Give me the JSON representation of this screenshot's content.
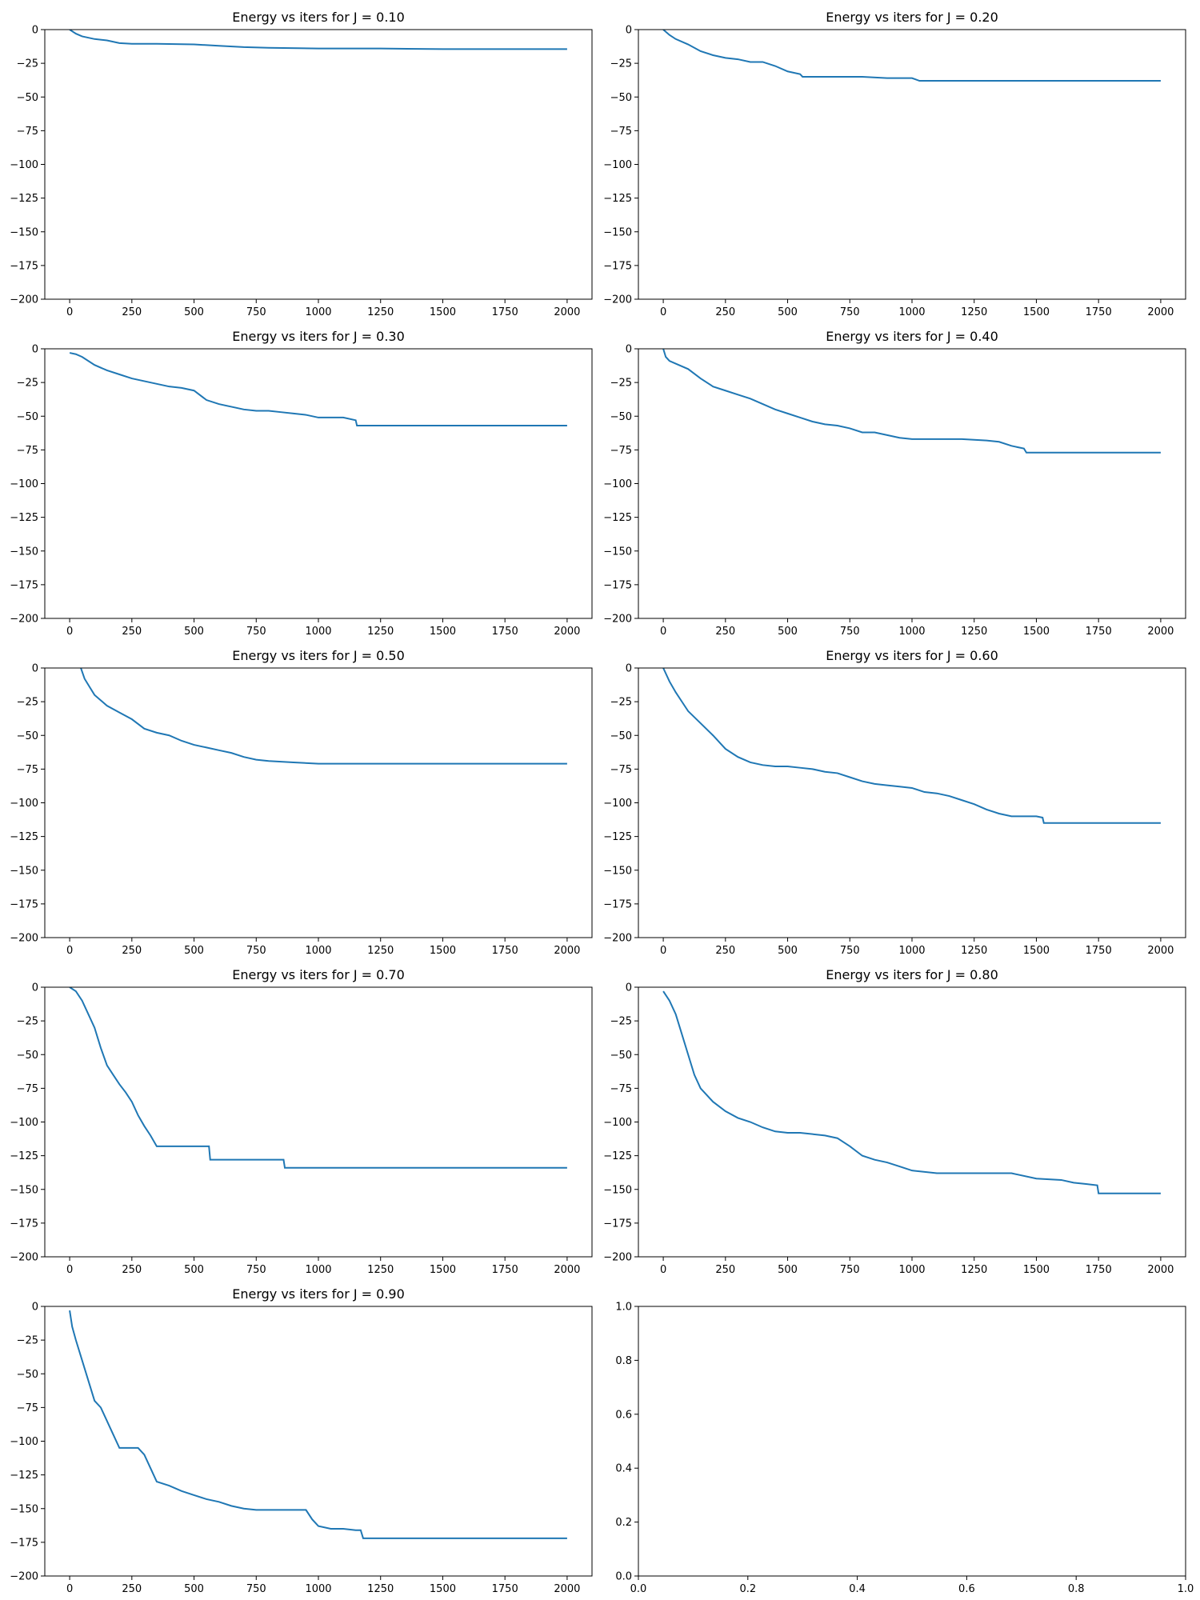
{
  "colors": {
    "series": "#1f77b4",
    "axes": "#000000",
    "background": "#ffffff"
  },
  "chart_data": [
    {
      "type": "line",
      "title": "Energy vs iters for J = 0.10",
      "xlabel": "",
      "ylabel": "",
      "xlim": [
        -100,
        2100
      ],
      "ylim": [
        -200,
        0
      ],
      "xticks": [
        0,
        250,
        500,
        750,
        1000,
        1250,
        1500,
        1750,
        2000
      ],
      "yticks": [
        0,
        -25,
        -50,
        -75,
        -100,
        -125,
        -150,
        -175,
        -200
      ],
      "grid": false,
      "series": [
        {
          "x": [
            0,
            25,
            50,
            100,
            150,
            200,
            250,
            350,
            500,
            600,
            700,
            800,
            1000,
            1250,
            1500,
            1750,
            2000
          ],
          "y": [
            0,
            -3,
            -5,
            -7,
            -8,
            -10,
            -10.5,
            -10.5,
            -11,
            -12,
            -13,
            -13.5,
            -14,
            -14,
            -14.5,
            -14.5,
            -14.5
          ]
        }
      ]
    },
    {
      "type": "line",
      "title": "Energy vs iters for J = 0.20",
      "xlabel": "",
      "ylabel": "",
      "xlim": [
        -100,
        2100
      ],
      "ylim": [
        -200,
        0
      ],
      "xticks": [
        0,
        250,
        500,
        750,
        1000,
        1250,
        1500,
        1750,
        2000
      ],
      "yticks": [
        0,
        -25,
        -50,
        -75,
        -100,
        -125,
        -150,
        -175,
        -200
      ],
      "grid": false,
      "series": [
        {
          "x": [
            0,
            25,
            50,
            100,
            150,
            200,
            250,
            300,
            350,
            400,
            450,
            500,
            550,
            560,
            700,
            800,
            900,
            1000,
            1030,
            1300,
            1500,
            2000
          ],
          "y": [
            0,
            -4,
            -7,
            -11,
            -16,
            -19,
            -21,
            -22,
            -24,
            -24,
            -27,
            -31,
            -33,
            -35,
            -35,
            -35,
            -36,
            -36,
            -38,
            -38,
            -38,
            -38
          ]
        }
      ]
    },
    {
      "type": "line",
      "title": "Energy vs iters for J = 0.30",
      "xlabel": "",
      "ylabel": "",
      "xlim": [
        -100,
        2100
      ],
      "ylim": [
        -200,
        0
      ],
      "xticks": [
        0,
        250,
        500,
        750,
        1000,
        1250,
        1500,
        1750,
        2000
      ],
      "yticks": [
        0,
        -25,
        -50,
        -75,
        -100,
        -125,
        -150,
        -175,
        -200
      ],
      "grid": false,
      "series": [
        {
          "x": [
            0,
            25,
            50,
            100,
            150,
            200,
            250,
            300,
            350,
            400,
            450,
            500,
            550,
            600,
            650,
            700,
            750,
            800,
            850,
            900,
            950,
            1000,
            1050,
            1100,
            1150,
            1155,
            1500,
            2000
          ],
          "y": [
            -3,
            -4,
            -6,
            -12,
            -16,
            -19,
            -22,
            -24,
            -26,
            -28,
            -29,
            -31,
            -38,
            -41,
            -43,
            -45,
            -46,
            -46,
            -47,
            -48,
            -49,
            -51,
            -51,
            -51,
            -53,
            -57,
            -57,
            -57
          ]
        }
      ]
    },
    {
      "type": "line",
      "title": "Energy vs iters for J = 0.40",
      "xlabel": "",
      "ylabel": "",
      "xlim": [
        -100,
        2100
      ],
      "ylim": [
        -200,
        0
      ],
      "xticks": [
        0,
        250,
        500,
        750,
        1000,
        1250,
        1500,
        1750,
        2000
      ],
      "yticks": [
        0,
        -25,
        -50,
        -75,
        -100,
        -125,
        -150,
        -175,
        -200
      ],
      "grid": false,
      "series": [
        {
          "x": [
            0,
            10,
            25,
            50,
            100,
            150,
            200,
            250,
            300,
            350,
            400,
            450,
            500,
            550,
            600,
            650,
            700,
            750,
            800,
            850,
            900,
            950,
            1000,
            1100,
            1200,
            1300,
            1350,
            1400,
            1450,
            1460,
            1700,
            2000
          ],
          "y": [
            0,
            -6,
            -9,
            -11,
            -15,
            -22,
            -28,
            -31,
            -34,
            -37,
            -41,
            -45,
            -48,
            -51,
            -54,
            -56,
            -57,
            -59,
            -62,
            -62,
            -64,
            -66,
            -67,
            -67,
            -67,
            -68,
            -69,
            -72,
            -74,
            -77,
            -77,
            -77
          ]
        }
      ]
    },
    {
      "type": "line",
      "title": "Energy vs iters for J = 0.50",
      "xlabel": "",
      "ylabel": "",
      "xlim": [
        -100,
        2100
      ],
      "ylim": [
        -200,
        0
      ],
      "xticks": [
        0,
        250,
        500,
        750,
        1000,
        1250,
        1500,
        1750,
        2000
      ],
      "yticks": [
        0,
        -25,
        -50,
        -75,
        -100,
        -125,
        -150,
        -175,
        -200
      ],
      "grid": false,
      "series": [
        {
          "x": [
            45,
            60,
            80,
            100,
            150,
            200,
            250,
            300,
            350,
            400,
            450,
            500,
            550,
            600,
            650,
            700,
            750,
            800,
            900,
            1000,
            1250,
            1500,
            1750,
            2000
          ],
          "y": [
            0,
            -8,
            -14,
            -20,
            -28,
            -33,
            -38,
            -45,
            -48,
            -50,
            -54,
            -57,
            -59,
            -61,
            -63,
            -66,
            -68,
            -69,
            -70,
            -71,
            -71,
            -71,
            -71,
            -71
          ]
        }
      ]
    },
    {
      "type": "line",
      "title": "Energy vs iters for J = 0.60",
      "xlabel": "",
      "ylabel": "",
      "xlim": [
        -100,
        2100
      ],
      "ylim": [
        -200,
        0
      ],
      "xticks": [
        0,
        250,
        500,
        750,
        1000,
        1250,
        1500,
        1750,
        2000
      ],
      "yticks": [
        0,
        -25,
        -50,
        -75,
        -100,
        -125,
        -150,
        -175,
        -200
      ],
      "grid": false,
      "series": [
        {
          "x": [
            0,
            25,
            50,
            75,
            100,
            150,
            200,
            250,
            300,
            350,
            400,
            450,
            500,
            550,
            600,
            650,
            700,
            750,
            800,
            850,
            900,
            950,
            1000,
            1050,
            1100,
            1150,
            1200,
            1250,
            1300,
            1350,
            1400,
            1450,
            1500,
            1525,
            1530,
            1700,
            2000
          ],
          "y": [
            0,
            -10,
            -18,
            -25,
            -32,
            -41,
            -50,
            -60,
            -66,
            -70,
            -72,
            -73,
            -73,
            -74,
            -75,
            -77,
            -78,
            -81,
            -84,
            -86,
            -87,
            -88,
            -89,
            -92,
            -93,
            -95,
            -98,
            -101,
            -105,
            -108,
            -110,
            -110,
            -110,
            -111,
            -115,
            -115,
            -115
          ]
        }
      ]
    },
    {
      "type": "line",
      "title": "Energy vs iters for J = 0.70",
      "xlabel": "",
      "ylabel": "",
      "xlim": [
        -100,
        2100
      ],
      "ylim": [
        -200,
        0
      ],
      "xticks": [
        0,
        250,
        500,
        750,
        1000,
        1250,
        1500,
        1750,
        2000
      ],
      "yticks": [
        0,
        -25,
        -50,
        -75,
        -100,
        -125,
        -150,
        -175,
        -200
      ],
      "grid": false,
      "series": [
        {
          "x": [
            0,
            25,
            50,
            75,
            100,
            125,
            150,
            175,
            200,
            225,
            250,
            275,
            300,
            325,
            350,
            400,
            500,
            560,
            565,
            600,
            700,
            860,
            865,
            1200,
            1500,
            2000
          ],
          "y": [
            0,
            -3,
            -10,
            -20,
            -30,
            -45,
            -58,
            -65,
            -72,
            -78,
            -85,
            -95,
            -103,
            -110,
            -118,
            -118,
            -118,
            -118,
            -128,
            -128,
            -128,
            -128,
            -134,
            -134,
            -134,
            -134
          ]
        }
      ]
    },
    {
      "type": "line",
      "title": "Energy vs iters for J = 0.80",
      "xlabel": "",
      "ylabel": "",
      "xlim": [
        -100,
        2100
      ],
      "ylim": [
        -200,
        0
      ],
      "xticks": [
        0,
        250,
        500,
        750,
        1000,
        1250,
        1500,
        1750,
        2000
      ],
      "yticks": [
        0,
        -25,
        -50,
        -75,
        -100,
        -125,
        -150,
        -175,
        -200
      ],
      "grid": false,
      "series": [
        {
          "x": [
            0,
            25,
            50,
            75,
            100,
            125,
            150,
            200,
            250,
            300,
            350,
            400,
            450,
            500,
            550,
            600,
            650,
            700,
            750,
            800,
            850,
            900,
            950,
            1000,
            1100,
            1200,
            1300,
            1400,
            1500,
            1600,
            1650,
            1700,
            1745,
            1750,
            1900,
            2000
          ],
          "y": [
            -3,
            -10,
            -20,
            -35,
            -50,
            -65,
            -75,
            -85,
            -92,
            -97,
            -100,
            -104,
            -107,
            -108,
            -108,
            -109,
            -110,
            -112,
            -118,
            -125,
            -128,
            -130,
            -133,
            -136,
            -138,
            -138,
            -138,
            -138,
            -142,
            -143,
            -145,
            -146,
            -147,
            -153,
            -153,
            -153
          ]
        }
      ]
    },
    {
      "type": "line",
      "title": "Energy vs iters for J = 0.90",
      "xlabel": "",
      "ylabel": "",
      "xlim": [
        -100,
        2100
      ],
      "ylim": [
        -200,
        0
      ],
      "xticks": [
        0,
        250,
        500,
        750,
        1000,
        1250,
        1500,
        1750,
        2000
      ],
      "yticks": [
        0,
        -25,
        -50,
        -75,
        -100,
        -125,
        -150,
        -175,
        -200
      ],
      "grid": false,
      "series": [
        {
          "x": [
            0,
            10,
            25,
            50,
            75,
            100,
            125,
            150,
            175,
            200,
            225,
            250,
            275,
            300,
            325,
            350,
            400,
            450,
            500,
            550,
            600,
            650,
            700,
            750,
            800,
            850,
            900,
            950,
            975,
            1000,
            1050,
            1100,
            1150,
            1170,
            1180,
            1500,
            2000
          ],
          "y": [
            -3,
            -15,
            -25,
            -40,
            -55,
            -70,
            -75,
            -85,
            -95,
            -105,
            -105,
            -105,
            -105,
            -110,
            -120,
            -130,
            -133,
            -137,
            -140,
            -143,
            -145,
            -148,
            -150,
            -151,
            -151,
            -151,
            -151,
            -151,
            -158,
            -163,
            -165,
            -165,
            -166,
            -166,
            -172,
            -172,
            -172
          ]
        }
      ]
    },
    {
      "type": "line",
      "title": "",
      "xlabel": "",
      "ylabel": "",
      "xlim": [
        0,
        1
      ],
      "ylim": [
        0,
        1
      ],
      "xticks": [
        0.0,
        0.2,
        0.4,
        0.6,
        0.8,
        1.0
      ],
      "yticks": [
        0.0,
        0.2,
        0.4,
        0.6,
        0.8,
        1.0
      ],
      "xtick_labels": [
        "0.0",
        "0.2",
        "0.4",
        "0.6",
        "0.8",
        "1.0"
      ],
      "ytick_labels": [
        "0.0",
        "0.2",
        "0.4",
        "0.6",
        "0.8",
        "1.0"
      ],
      "grid": false,
      "series": []
    }
  ]
}
